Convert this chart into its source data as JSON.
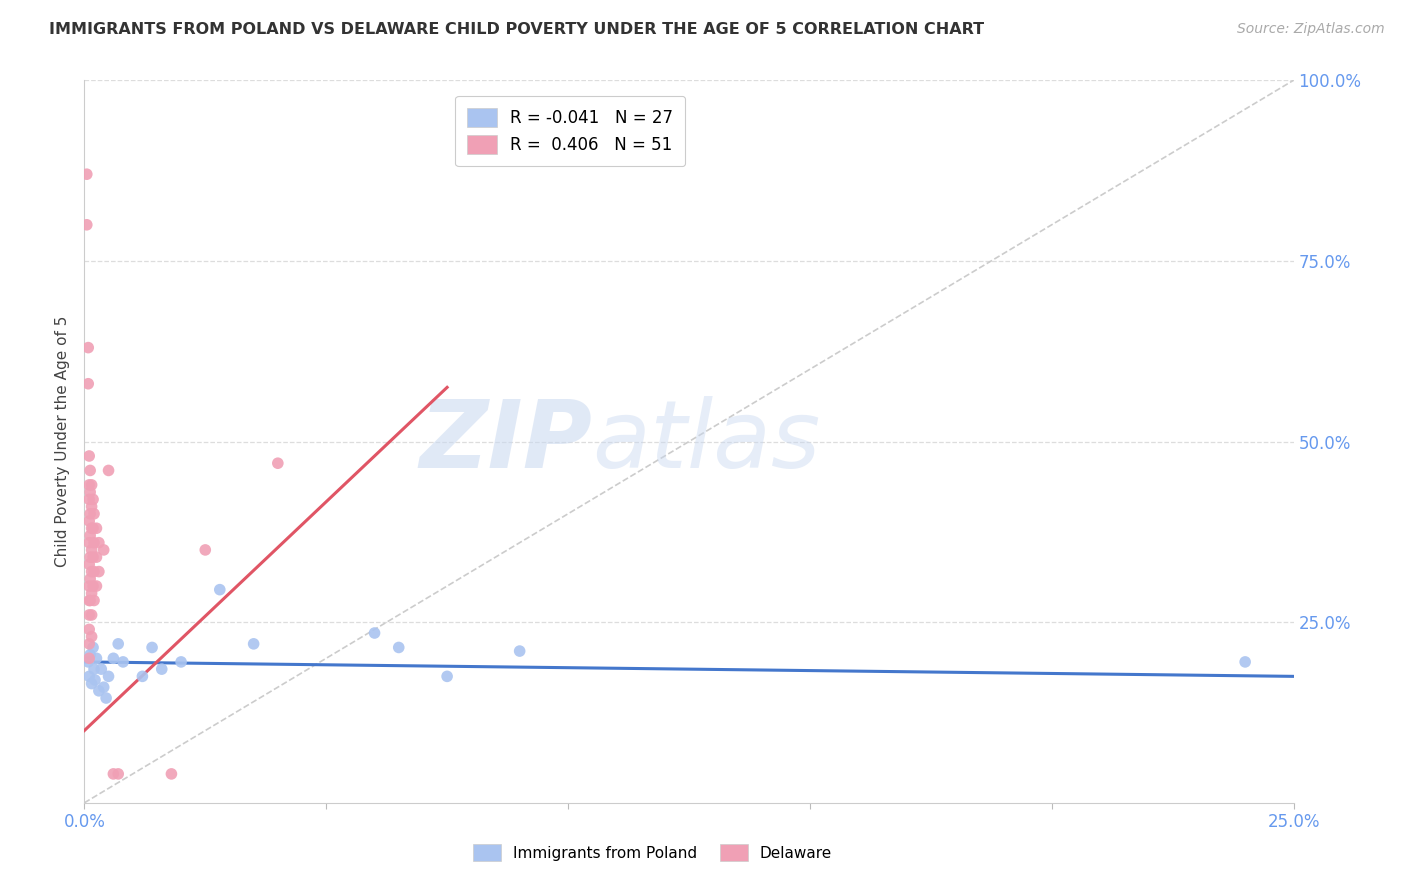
{
  "title": "IMMIGRANTS FROM POLAND VS DELAWARE CHILD POVERTY UNDER THE AGE OF 5 CORRELATION CHART",
  "source": "Source: ZipAtlas.com",
  "ylabel": "Child Poverty Under the Age of 5",
  "xlim": [
    0.0,
    0.25
  ],
  "ylim": [
    0.0,
    1.0
  ],
  "x_tick_positions": [
    0.0,
    0.05,
    0.1,
    0.15,
    0.2,
    0.25
  ],
  "x_tick_labels": [
    "0.0%",
    "",
    "",
    "",
    "",
    "25.0%"
  ],
  "y_ticks_right": [
    0.0,
    0.25,
    0.5,
    0.75,
    1.0
  ],
  "y_tick_labels_right": [
    "",
    "25.0%",
    "50.0%",
    "75.0%",
    "100.0%"
  ],
  "legend_entries": [
    {
      "label": "R = -0.041   N = 27",
      "color": "#aec6f0"
    },
    {
      "label": "R =  0.406   N = 51",
      "color": "#f5a0b5"
    }
  ],
  "legend_labels_bottom": [
    "Immigrants from Poland",
    "Delaware"
  ],
  "blue_scatter": [
    [
      0.0008,
      0.195
    ],
    [
      0.001,
      0.175
    ],
    [
      0.0012,
      0.205
    ],
    [
      0.0015,
      0.165
    ],
    [
      0.0018,
      0.215
    ],
    [
      0.002,
      0.185
    ],
    [
      0.0022,
      0.17
    ],
    [
      0.0025,
      0.2
    ],
    [
      0.003,
      0.155
    ],
    [
      0.0035,
      0.185
    ],
    [
      0.004,
      0.16
    ],
    [
      0.0045,
      0.145
    ],
    [
      0.005,
      0.175
    ],
    [
      0.006,
      0.2
    ],
    [
      0.007,
      0.22
    ],
    [
      0.008,
      0.195
    ],
    [
      0.012,
      0.175
    ],
    [
      0.014,
      0.215
    ],
    [
      0.016,
      0.185
    ],
    [
      0.02,
      0.195
    ],
    [
      0.028,
      0.295
    ],
    [
      0.035,
      0.22
    ],
    [
      0.06,
      0.235
    ],
    [
      0.065,
      0.215
    ],
    [
      0.075,
      0.175
    ],
    [
      0.09,
      0.21
    ],
    [
      0.24,
      0.195
    ]
  ],
  "pink_scatter": [
    [
      0.0005,
      0.87
    ],
    [
      0.0005,
      0.8
    ],
    [
      0.0008,
      0.63
    ],
    [
      0.0008,
      0.58
    ],
    [
      0.001,
      0.48
    ],
    [
      0.001,
      0.44
    ],
    [
      0.001,
      0.42
    ],
    [
      0.001,
      0.39
    ],
    [
      0.001,
      0.36
    ],
    [
      0.001,
      0.33
    ],
    [
      0.001,
      0.3
    ],
    [
      0.001,
      0.28
    ],
    [
      0.001,
      0.26
    ],
    [
      0.001,
      0.24
    ],
    [
      0.001,
      0.22
    ],
    [
      0.001,
      0.2
    ],
    [
      0.0012,
      0.46
    ],
    [
      0.0012,
      0.43
    ],
    [
      0.0012,
      0.4
    ],
    [
      0.0012,
      0.37
    ],
    [
      0.0012,
      0.34
    ],
    [
      0.0012,
      0.31
    ],
    [
      0.0012,
      0.28
    ],
    [
      0.0015,
      0.44
    ],
    [
      0.0015,
      0.41
    ],
    [
      0.0015,
      0.38
    ],
    [
      0.0015,
      0.35
    ],
    [
      0.0015,
      0.32
    ],
    [
      0.0015,
      0.29
    ],
    [
      0.0015,
      0.26
    ],
    [
      0.0015,
      0.23
    ],
    [
      0.0018,
      0.42
    ],
    [
      0.0018,
      0.38
    ],
    [
      0.0018,
      0.34
    ],
    [
      0.0018,
      0.3
    ],
    [
      0.002,
      0.4
    ],
    [
      0.002,
      0.36
    ],
    [
      0.002,
      0.32
    ],
    [
      0.002,
      0.28
    ],
    [
      0.0025,
      0.38
    ],
    [
      0.0025,
      0.34
    ],
    [
      0.0025,
      0.3
    ],
    [
      0.003,
      0.36
    ],
    [
      0.003,
      0.32
    ],
    [
      0.004,
      0.35
    ],
    [
      0.005,
      0.46
    ],
    [
      0.006,
      0.04
    ],
    [
      0.007,
      0.04
    ],
    [
      0.018,
      0.04
    ],
    [
      0.025,
      0.35
    ],
    [
      0.04,
      0.47
    ]
  ],
  "blue_line": {
    "x0": 0.0,
    "y0": 0.195,
    "x1": 0.25,
    "y1": 0.175
  },
  "pink_line": {
    "x0": 0.0,
    "y0": 0.1,
    "x1": 0.075,
    "y1": 0.575
  },
  "diagonal_line": {
    "x0": 0.0,
    "y0": 0.0,
    "x1": 0.25,
    "y1": 1.0
  },
  "watermark_zip": "ZIP",
  "watermark_atlas": "atlas",
  "background_color": "#ffffff",
  "scatter_size": 70,
  "blue_color": "#aac4f0",
  "pink_color": "#f0a0b5",
  "blue_line_color": "#4477cc",
  "pink_line_color": "#e05565",
  "diagonal_color": "#cccccc",
  "grid_color": "#dddddd",
  "title_color": "#333333",
  "axis_label_color": "#6699ee",
  "ylabel_color": "#444444"
}
